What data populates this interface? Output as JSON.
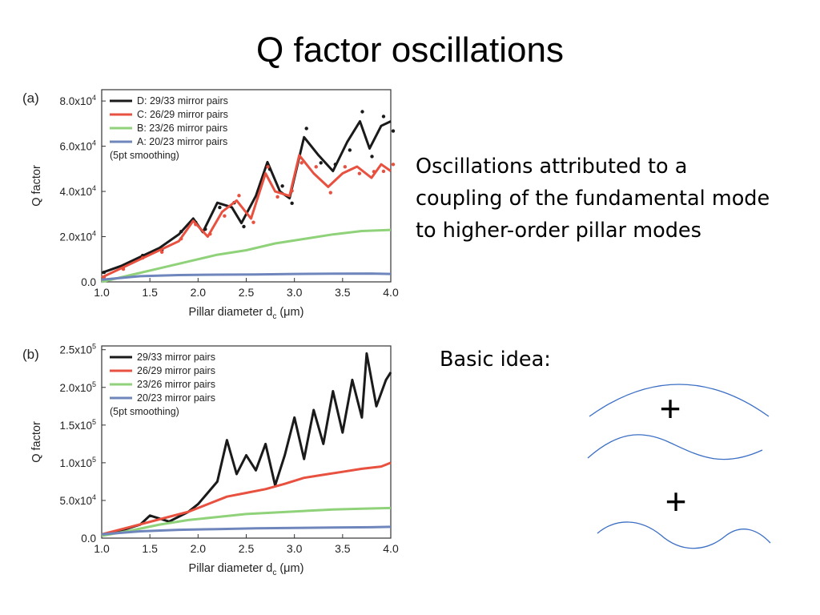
{
  "slide": {
    "title": "Q factor oscillations",
    "description_lines": [
      "Oscillations attributed to a",
      "coupling of the fundamental mode",
      "to higher-order pillar modes"
    ],
    "basic_idea_label": "Basic idea:",
    "plus_symbol": "+"
  },
  "chart_data": [
    {
      "panel_label": "(a)",
      "type": "line",
      "xlabel": "Pillar diameter d",
      "xlabel_sub": "c",
      "xlabel_unit": " (μm)",
      "ylabel": "Q factor",
      "xlim": [
        1.0,
        4.0
      ],
      "ylim": [
        0,
        85000
      ],
      "xticks": [
        "1.0",
        "1.5",
        "2.0",
        "2.5",
        "3.0",
        "3.5",
        "4.0"
      ],
      "yticks": [
        {
          "value": 0,
          "label": "0.0"
        },
        {
          "value": 20000,
          "label": "2.0x10",
          "exp": "4"
        },
        {
          "value": 40000,
          "label": "4.0x10",
          "exp": "4"
        },
        {
          "value": 60000,
          "label": "6.0x10",
          "exp": "4"
        },
        {
          "value": 80000,
          "label": "8.0x10",
          "exp": "4"
        }
      ],
      "legend_position": "top-left",
      "legend_note": "(5pt smoothing)",
      "colors": {
        "D": "#1a1a1a",
        "C": "#e8503f",
        "B": "#8fd27a",
        "A": "#6f86bd"
      },
      "series": [
        {
          "key": "D",
          "name": "D: 29/33 mirror pairs",
          "color": "#1a1a1a",
          "x": [
            1.0,
            1.2,
            1.4,
            1.6,
            1.8,
            1.95,
            2.05,
            2.2,
            2.35,
            2.45,
            2.6,
            2.72,
            2.85,
            2.95,
            3.1,
            3.25,
            3.4,
            3.55,
            3.68,
            3.78,
            3.9,
            4.0
          ],
          "y": [
            4000,
            7000,
            11000,
            15000,
            21000,
            28000,
            22000,
            35000,
            33000,
            26000,
            38000,
            53000,
            40000,
            37000,
            64000,
            56000,
            49000,
            62000,
            71000,
            59000,
            69000,
            71000
          ]
        },
        {
          "key": "C",
          "name": "C: 26/29 mirror pairs",
          "color": "#e8503f",
          "x": [
            1.0,
            1.2,
            1.4,
            1.6,
            1.8,
            1.95,
            2.1,
            2.25,
            2.4,
            2.55,
            2.7,
            2.8,
            2.95,
            3.05,
            3.2,
            3.35,
            3.5,
            3.65,
            3.8,
            3.9,
            4.0
          ],
          "y": [
            2000,
            6000,
            10000,
            14000,
            18000,
            27000,
            20000,
            31000,
            36000,
            28000,
            48000,
            40000,
            38000,
            56000,
            48000,
            42000,
            48000,
            51000,
            46000,
            52000,
            49000
          ]
        },
        {
          "key": "B",
          "name": "B: 23/26 mirror pairs",
          "color": "#8fd27a",
          "x": [
            1.0,
            1.3,
            1.6,
            1.9,
            2.2,
            2.5,
            2.8,
            3.1,
            3.4,
            3.7,
            4.0
          ],
          "y": [
            0,
            3000,
            6000,
            9000,
            12000,
            14000,
            17000,
            19000,
            21000,
            22500,
            23000
          ]
        },
        {
          "key": "A",
          "name": "A: 20/23 mirror pairs",
          "color": "#6f86bd",
          "x": [
            1.0,
            1.4,
            1.8,
            2.2,
            2.6,
            3.0,
            3.4,
            3.8,
            4.0
          ],
          "y": [
            1000,
            2500,
            3000,
            3200,
            3300,
            3500,
            3600,
            3700,
            3500
          ]
        }
      ]
    },
    {
      "panel_label": "(b)",
      "type": "line",
      "xlabel": "Pillar diameter d",
      "xlabel_sub": "c",
      "xlabel_unit": " (μm)",
      "ylabel": "Q factor",
      "xlim": [
        1.0,
        4.0
      ],
      "ylim": [
        0,
        255000
      ],
      "xticks": [
        "1.0",
        "1.5",
        "2.0",
        "2.5",
        "3.0",
        "3.5",
        "4.0"
      ],
      "yticks": [
        {
          "value": 0,
          "label": "0.0"
        },
        {
          "value": 50000,
          "label": "5.0x10",
          "exp": "4"
        },
        {
          "value": 100000,
          "label": "1.0x10",
          "exp": "5"
        },
        {
          "value": 150000,
          "label": "1.5x10",
          "exp": "5"
        },
        {
          "value": 200000,
          "label": "2.0x10",
          "exp": "5"
        },
        {
          "value": 250000,
          "label": "2.5x10",
          "exp": "5"
        }
      ],
      "legend_position": "top-left",
      "legend_note": "(5pt smoothing)",
      "series": [
        {
          "name": "29/33 mirror pairs",
          "color": "#1a1a1a",
          "x": [
            1.0,
            1.2,
            1.4,
            1.5,
            1.7,
            1.9,
            2.0,
            2.1,
            2.2,
            2.3,
            2.4,
            2.5,
            2.6,
            2.7,
            2.8,
            2.9,
            3.0,
            3.1,
            3.2,
            3.3,
            3.4,
            3.5,
            3.6,
            3.7,
            3.75,
            3.85,
            3.95,
            4.0
          ],
          "y": [
            5000,
            10000,
            18000,
            30000,
            22000,
            35000,
            45000,
            60000,
            75000,
            130000,
            85000,
            110000,
            90000,
            125000,
            70000,
            110000,
            160000,
            105000,
            170000,
            125000,
            195000,
            140000,
            210000,
            160000,
            245000,
            175000,
            210000,
            220000
          ]
        },
        {
          "name": "26/29 mirror pairs",
          "color": "#e8503f",
          "x": [
            1.0,
            1.3,
            1.6,
            1.9,
            2.1,
            2.3,
            2.5,
            2.7,
            2.9,
            3.1,
            3.3,
            3.5,
            3.7,
            3.9,
            4.0
          ],
          "y": [
            5000,
            15000,
            25000,
            35000,
            45000,
            55000,
            60000,
            65000,
            72000,
            80000,
            84000,
            88000,
            92000,
            95000,
            100000
          ]
        },
        {
          "name": "23/26 mirror pairs",
          "color": "#8fd27a",
          "x": [
            1.0,
            1.3,
            1.6,
            1.9,
            2.2,
            2.5,
            2.8,
            3.1,
            3.4,
            3.7,
            4.0
          ],
          "y": [
            3000,
            10000,
            18000,
            24000,
            28000,
            32000,
            34000,
            36000,
            38000,
            39000,
            40000
          ]
        },
        {
          "name": "20/23 mirror pairs",
          "color": "#6f86bd",
          "x": [
            1.0,
            1.4,
            1.8,
            2.2,
            2.6,
            3.0,
            3.4,
            3.8,
            4.0
          ],
          "y": [
            5000,
            9000,
            11000,
            12000,
            13000,
            13500,
            14000,
            14500,
            15000
          ]
        }
      ]
    }
  ]
}
